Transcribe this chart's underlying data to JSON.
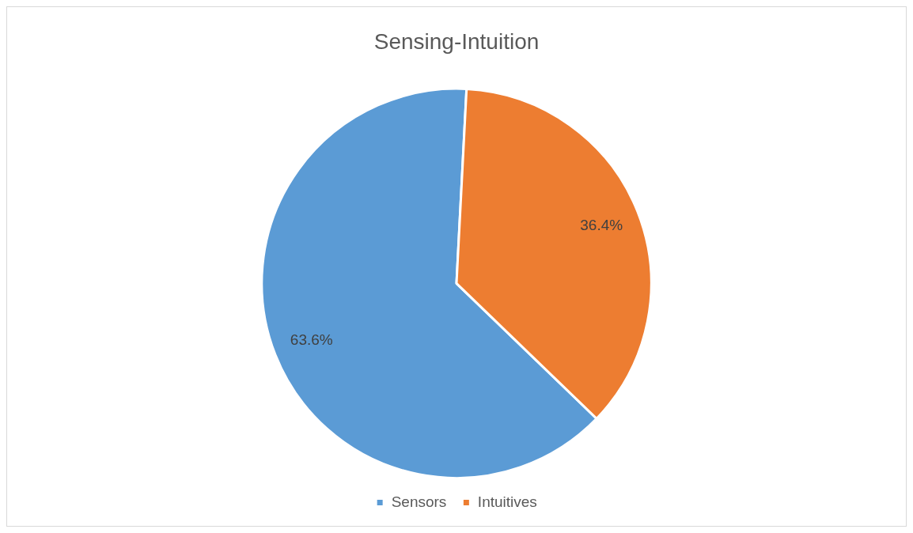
{
  "chart_data": {
    "type": "pie",
    "title": "Sensing-Intuition",
    "categories": [
      "Sensors",
      "Intuitives"
    ],
    "values": [
      63.6,
      36.4
    ],
    "value_labels": [
      "63.6%",
      "36.4%"
    ],
    "colors": [
      "#5b9bd5",
      "#ed7d31"
    ],
    "legend": "bottom"
  }
}
